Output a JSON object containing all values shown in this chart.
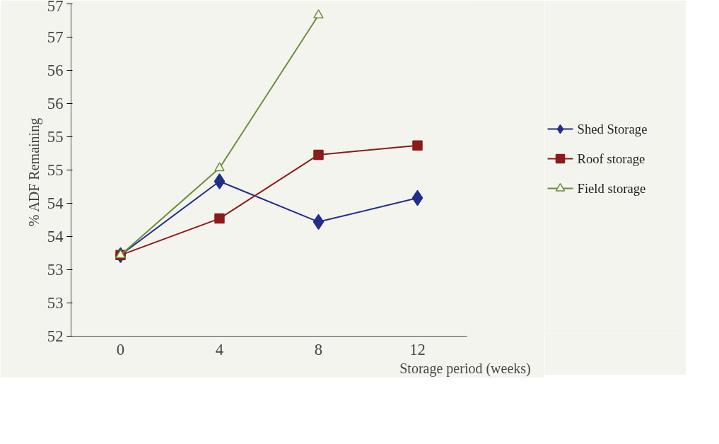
{
  "chart_data": {
    "type": "line",
    "xlabel": "Storage  period (weeks)",
    "ylabel": "% ADF  Remaining",
    "categories": [
      "0",
      "4",
      "8",
      "12"
    ],
    "ylim": [
      52,
      57
    ],
    "yticks": [
      52,
      {
        "value": 52.5,
        "label": "53"
      },
      53,
      {
        "value": 53.5,
        "label": "54"
      },
      54,
      {
        "value": 54.5,
        "label": "55"
      },
      55,
      {
        "value": 55.5,
        "label": "56"
      },
      56,
      {
        "value": 56.5,
        "label": "57"
      },
      57
    ],
    "legend": "right",
    "grid": false,
    "series": [
      {
        "name": "Shed Storage",
        "color": "#1f2f8a",
        "marker": "diamond",
        "values": [
          53.22,
          54.33,
          53.72,
          54.08
        ]
      },
      {
        "name": "Roof storage",
        "color": "#8b1a1a",
        "marker": "square",
        "values": [
          53.22,
          53.77,
          54.73,
          54.87
        ]
      },
      {
        "name": "Field storage",
        "color": "#6b8e3a",
        "marker": "triangle",
        "values": [
          53.22,
          54.53,
          56.83,
          null
        ]
      }
    ]
  }
}
